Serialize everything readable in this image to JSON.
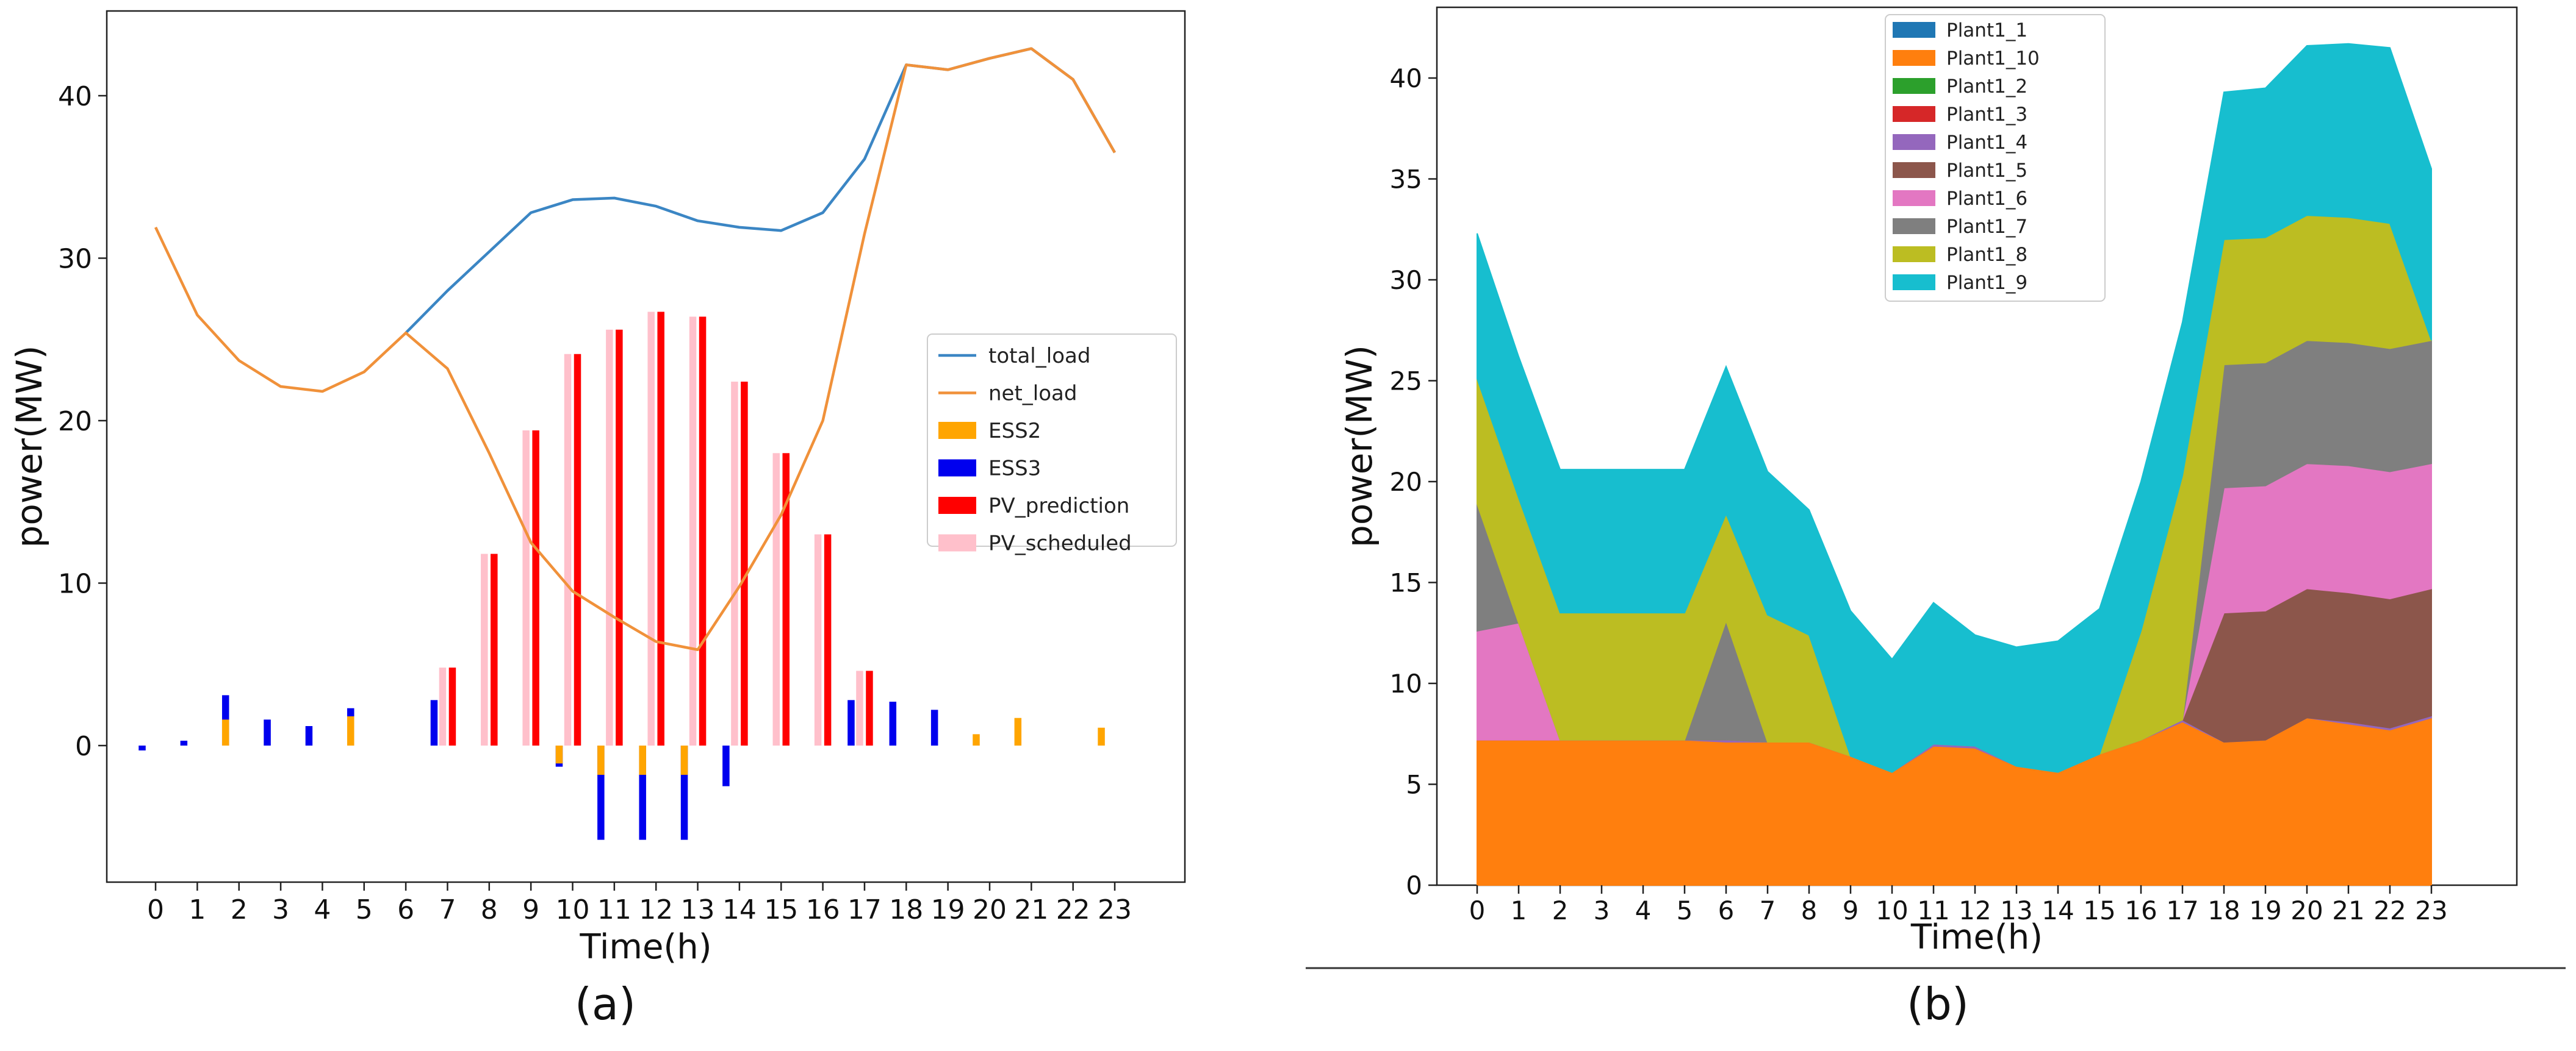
{
  "figure": {
    "caption_a": "(a)",
    "caption_b": "(b)"
  },
  "colors": {
    "total_load": "#3b86c4",
    "net_load": "#f0913a",
    "ESS2": "#ffa500",
    "ESS3": "#0000ee",
    "PV_prediction": "#ff0000",
    "PV_scheduled": "#ffc0cb",
    "Plant1_1": "#1f77b4",
    "Plant1_10": "#ff7f0e",
    "Plant1_2": "#2ca02c",
    "Plant1_3": "#d62728",
    "Plant1_4": "#9467bd",
    "Plant1_5": "#8c564b",
    "Plant1_6": "#e377c2",
    "Plant1_7": "#7f7f7f",
    "Plant1_8": "#bcbd22",
    "Plant1_9": "#17becf"
  },
  "chart_data": [
    {
      "id": "a",
      "type": "bar",
      "title": "",
      "xlabel": "Time(h)",
      "ylabel": "power(MW)",
      "x": [
        0,
        1,
        2,
        3,
        4,
        5,
        6,
        7,
        8,
        9,
        10,
        11,
        12,
        13,
        14,
        15,
        16,
        17,
        18,
        19,
        20,
        21,
        22,
        23
      ],
      "xticks": [
        "0",
        "1",
        "2",
        "3",
        "4",
        "5",
        "6",
        "7",
        "8",
        "9",
        "10",
        "11",
        "12",
        "13",
        "14",
        "15",
        "16",
        "17",
        "18",
        "19",
        "20",
        "21",
        "22",
        "23"
      ],
      "ylim": [
        -8,
        45
      ],
      "yticks": [
        0,
        10,
        20,
        30,
        40
      ],
      "ytick_labels": [
        "0",
        "10",
        "20",
        "30",
        "40"
      ],
      "legend": [
        "total_load",
        "net_load",
        "ESS2",
        "ESS3",
        "PV_prediction",
        "PV_scheduled"
      ],
      "legend_position": "center-right",
      "lines": [
        {
          "name": "total_load",
          "x": [
            6,
            7,
            8,
            9,
            10,
            11,
            12,
            13,
            14,
            15,
            16,
            17,
            18,
            19,
            20,
            21,
            22,
            23
          ],
          "values": [
            25.4,
            28.0,
            30.4,
            32.8,
            33.6,
            33.7,
            33.2,
            32.3,
            31.9,
            31.7,
            32.8,
            36.1,
            41.9,
            41.6,
            42.3,
            42.9,
            41.0,
            36.5
          ]
        },
        {
          "name": "net_load",
          "x": [
            0,
            1,
            2,
            3,
            4,
            5,
            6,
            7,
            8,
            9,
            10,
            11,
            12,
            13,
            14,
            15,
            16,
            17,
            18,
            19,
            20,
            21,
            22,
            23
          ],
          "values": [
            31.9,
            26.5,
            23.7,
            22.1,
            21.8,
            23.0,
            25.4,
            23.2,
            18.0,
            12.5,
            9.5,
            7.9,
            6.4,
            5.9,
            9.8,
            14.2,
            20.0,
            31.5,
            41.9,
            41.6,
            42.3,
            42.9,
            41.0,
            36.5
          ]
        }
      ],
      "series": [
        {
          "name": "ESS2",
          "values": [
            0,
            0,
            1.6,
            0,
            0,
            1.8,
            0,
            0,
            0,
            0,
            -1.1,
            -1.8,
            -1.8,
            -1.8,
            0,
            0,
            0,
            0,
            0,
            0,
            0.7,
            1.7,
            0,
            1.1
          ]
        },
        {
          "name": "ESS3",
          "values": [
            -0.3,
            0.3,
            3.1,
            1.6,
            1.2,
            2.3,
            0,
            2.8,
            0,
            0,
            -1.3,
            -5.8,
            -5.8,
            -5.8,
            -2.5,
            0,
            0,
            2.8,
            2.7,
            2.2,
            0,
            0,
            0,
            0
          ]
        },
        {
          "name": "PV_prediction",
          "values": [
            0,
            0,
            0,
            0,
            0,
            0,
            0,
            4.8,
            11.8,
            19.4,
            24.1,
            25.6,
            26.7,
            26.4,
            22.4,
            18.0,
            13.0,
            4.6,
            0,
            0,
            0,
            0,
            0,
            0
          ]
        },
        {
          "name": "PV_scheduled",
          "values": [
            0,
            0,
            0,
            0,
            0,
            0,
            0,
            4.8,
            11.8,
            19.4,
            24.1,
            25.6,
            26.7,
            26.4,
            22.4,
            18.0,
            13.0,
            4.6,
            0,
            0,
            0,
            0,
            0,
            0
          ]
        }
      ]
    },
    {
      "id": "b",
      "type": "area",
      "title": "",
      "xlabel": "Time(h)",
      "ylabel": "power(MW)",
      "x": [
        0,
        1,
        2,
        3,
        4,
        5,
        6,
        7,
        8,
        9,
        10,
        11,
        12,
        13,
        14,
        15,
        16,
        17,
        18,
        19,
        20,
        21,
        22,
        23
      ],
      "xticks": [
        "0",
        "1",
        "2",
        "3",
        "4",
        "5",
        "6",
        "7",
        "8",
        "9",
        "10",
        "11",
        "12",
        "13",
        "14",
        "15",
        "16",
        "17",
        "18",
        "19",
        "20",
        "21",
        "22",
        "23"
      ],
      "ylim": [
        0,
        43.5
      ],
      "yticks": [
        0,
        5,
        10,
        15,
        20,
        25,
        30,
        35,
        40
      ],
      "ytick_labels": [
        "0",
        "5",
        "10",
        "15",
        "20",
        "25",
        "30",
        "35",
        "40"
      ],
      "legend": [
        "Plant1_1",
        "Plant1_10",
        "Plant1_2",
        "Plant1_3",
        "Plant1_4",
        "Plant1_5",
        "Plant1_6",
        "Plant1_7",
        "Plant1_8",
        "Plant1_9"
      ],
      "legend_position": "top-center",
      "series": [
        {
          "name": "Plant1_1",
          "values": [
            0,
            0,
            0,
            0,
            0,
            0,
            0,
            0,
            0,
            0,
            0,
            0,
            0,
            0,
            0,
            0,
            0,
            0,
            0,
            0,
            0,
            0,
            0,
            0
          ]
        },
        {
          "name": "Plant1_10",
          "values": [
            7.2,
            7.2,
            7.2,
            7.2,
            7.2,
            7.2,
            7.1,
            7.1,
            7.1,
            6.4,
            5.6,
            6.9,
            6.8,
            5.9,
            5.6,
            6.5,
            7.2,
            8.1,
            7.1,
            7.2,
            8.3,
            8.0,
            7.7,
            8.3
          ]
        },
        {
          "name": "Plant1_2",
          "values": [
            0,
            0,
            0,
            0,
            0,
            0,
            0,
            0,
            0,
            0,
            0,
            0,
            0,
            0,
            0,
            0,
            0,
            0,
            0,
            0,
            0,
            0,
            0,
            0
          ]
        },
        {
          "name": "Plant1_3",
          "values": [
            0,
            0,
            0,
            0,
            0,
            0,
            0,
            0,
            0,
            0,
            0,
            0,
            0,
            0,
            0,
            0,
            0,
            0,
            0,
            0,
            0,
            0,
            0,
            0
          ]
        },
        {
          "name": "Plant1_4",
          "values": [
            0,
            0,
            0,
            0,
            0,
            0,
            0.1,
            0,
            0,
            0,
            0,
            0.1,
            0.1,
            0,
            0,
            0,
            0,
            0.1,
            0,
            0,
            0,
            0.1,
            0.1,
            0.1
          ]
        },
        {
          "name": "Plant1_5",
          "values": [
            0,
            0,
            0,
            0,
            0,
            0,
            0,
            0,
            0,
            0,
            0,
            0,
            0,
            0,
            0,
            0,
            0,
            0,
            6.4,
            6.4,
            6.4,
            6.4,
            6.4,
            6.3
          ]
        },
        {
          "name": "Plant1_6",
          "values": [
            5.4,
            5.8,
            0,
            0,
            0,
            0,
            0,
            0,
            0,
            0,
            0,
            0,
            0,
            0,
            0,
            0,
            0,
            0,
            6.2,
            6.2,
            6.2,
            6.3,
            6.3,
            6.2
          ]
        },
        {
          "name": "Plant1_7",
          "values": [
            6.3,
            0,
            0,
            0,
            0,
            0,
            5.9,
            0,
            0,
            0,
            0,
            0,
            0,
            0,
            0,
            0,
            0,
            0,
            6.1,
            6.1,
            6.1,
            6.1,
            6.1,
            6.1
          ]
        },
        {
          "name": "Plant1_8",
          "values": [
            6.2,
            6.2,
            6.3,
            6.3,
            6.3,
            6.3,
            5.3,
            6.3,
            5.3,
            0,
            0,
            0,
            0,
            0,
            0,
            0,
            5.4,
            12.1,
            6.2,
            6.2,
            6.2,
            6.2,
            6.2,
            0
          ]
        },
        {
          "name": "Plant1_9",
          "values": [
            7.2,
            7.0,
            7.1,
            7.1,
            7.1,
            7.1,
            7.3,
            7.1,
            6.2,
            7.2,
            5.6,
            7.0,
            5.5,
            5.9,
            6.5,
            7.2,
            7.4,
            7.6,
            7.3,
            7.4,
            8.4,
            8.6,
            8.7,
            8.5
          ]
        }
      ]
    }
  ]
}
